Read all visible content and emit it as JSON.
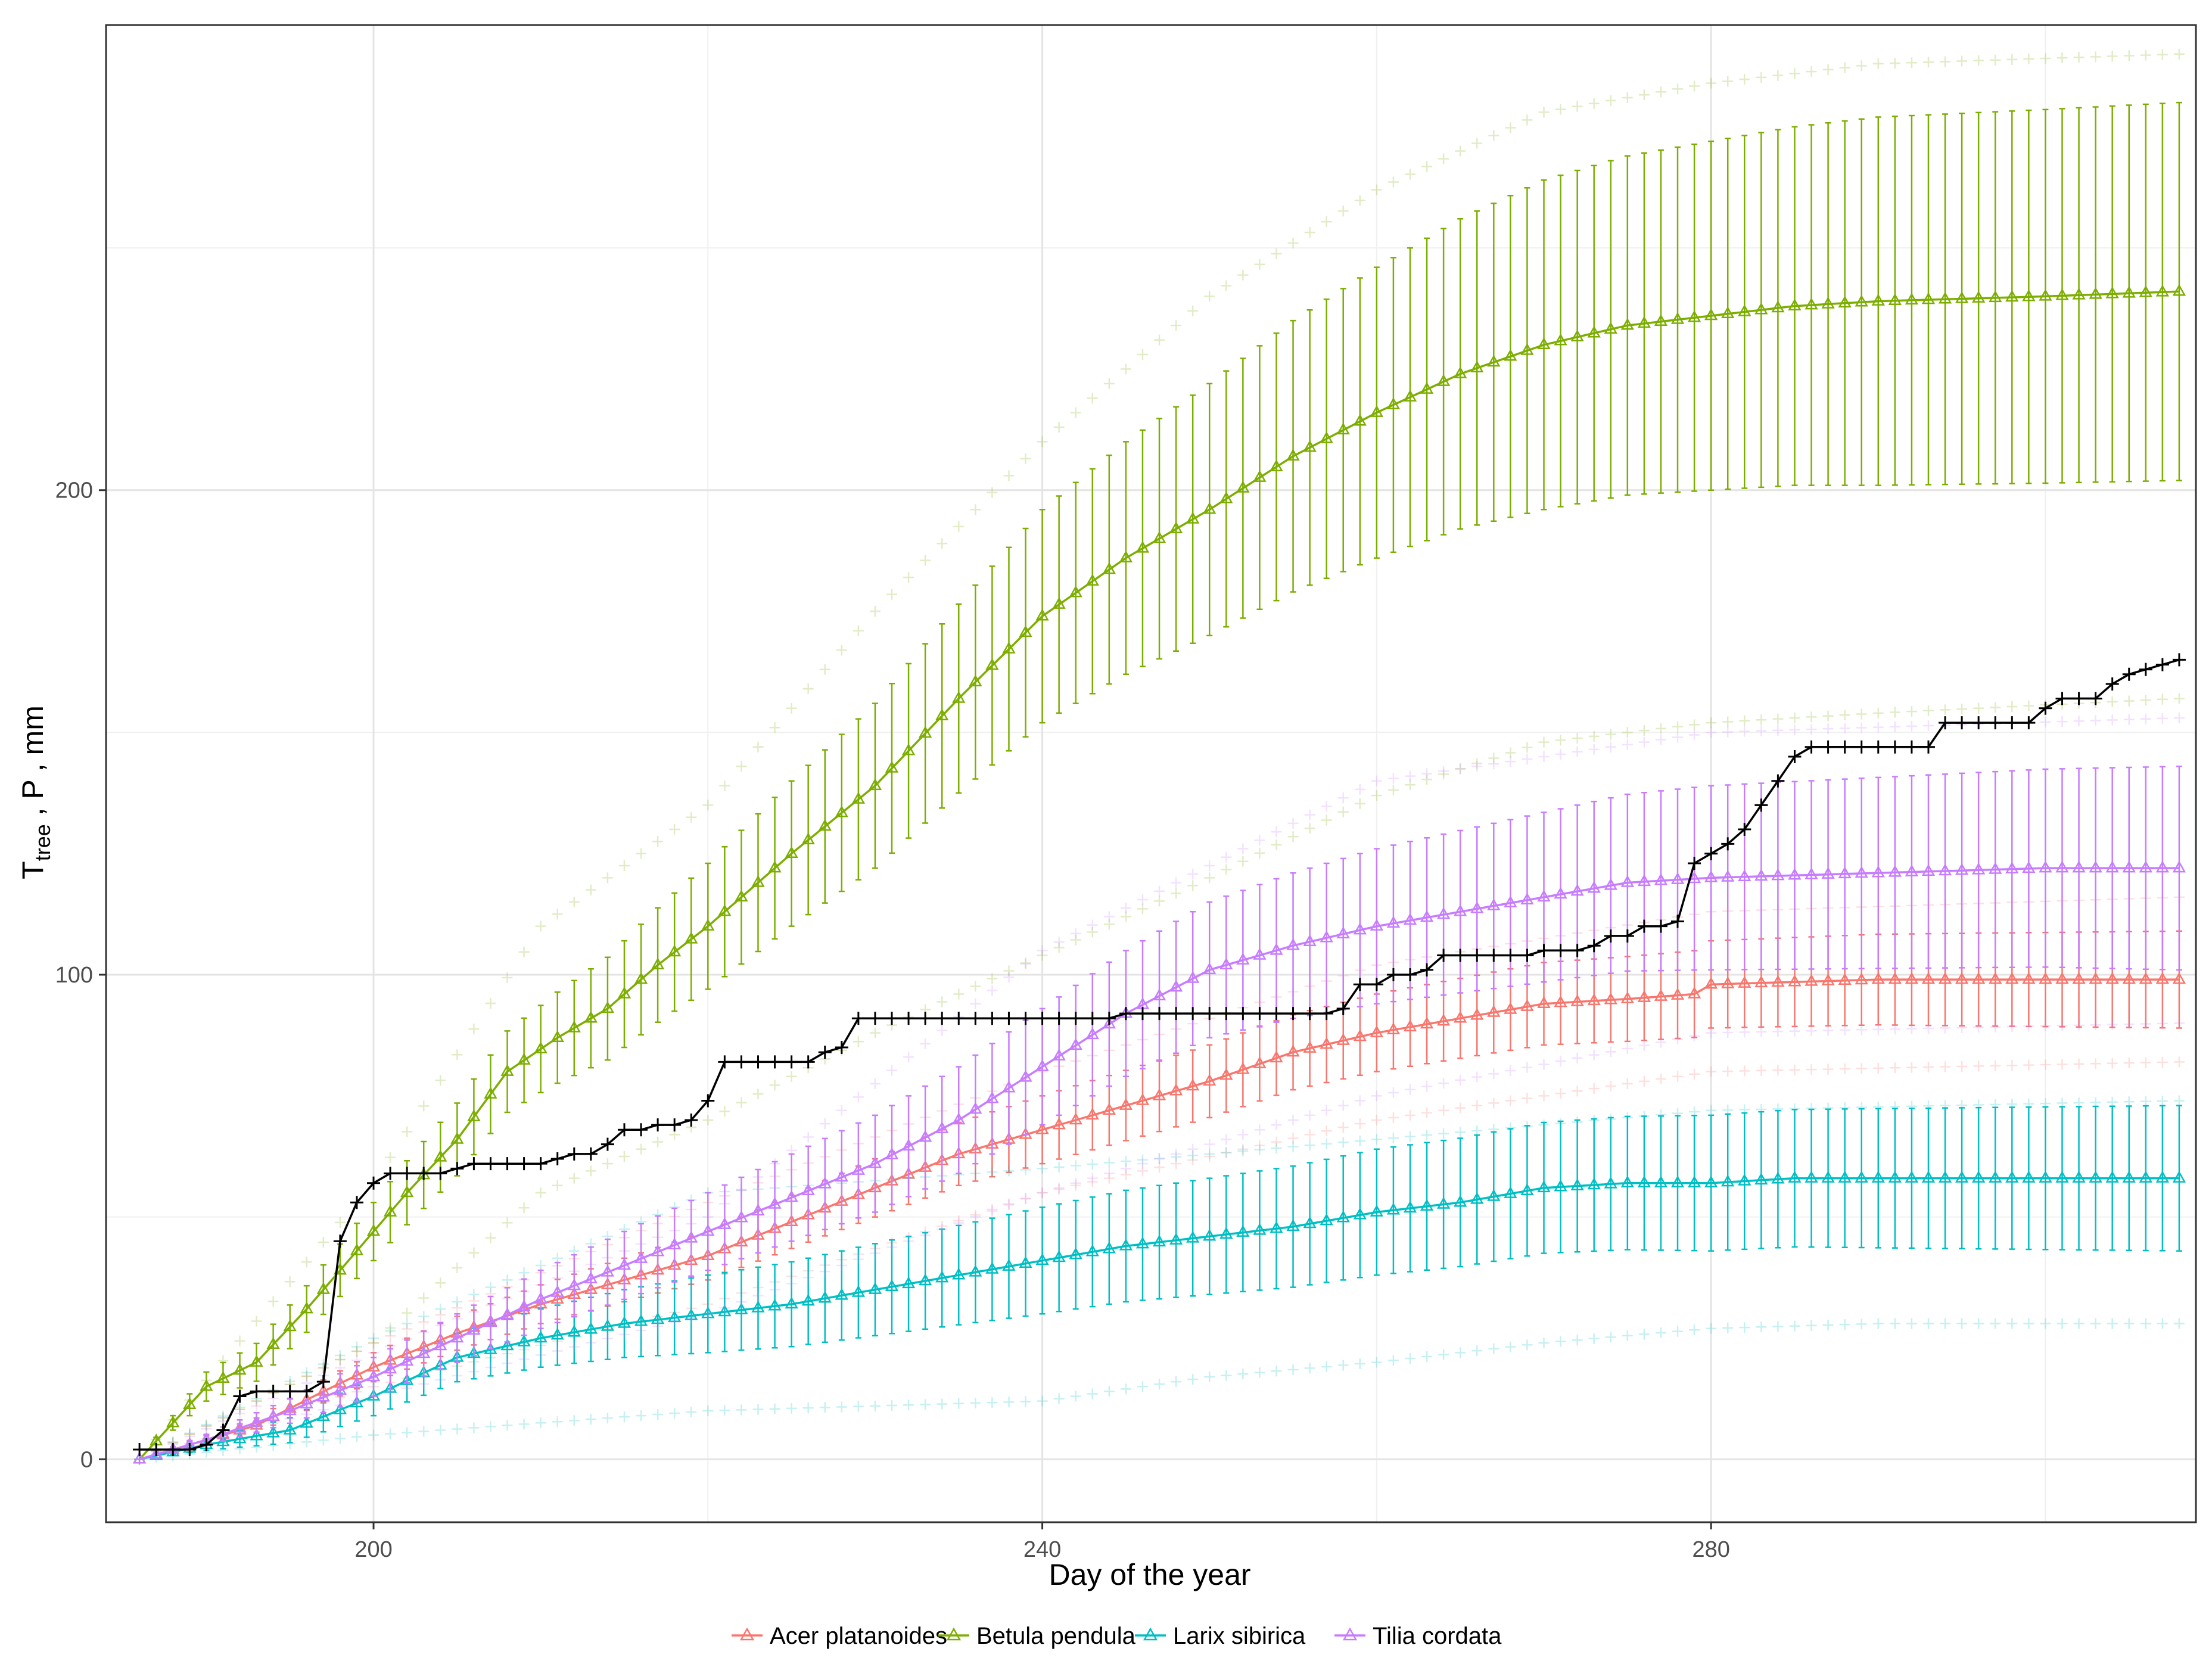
{
  "chart_data": {
    "type": "line",
    "title": "",
    "xlabel": "Day of the year",
    "ylabel_main": "T",
    "ylabel_sub": "tree",
    "ylabel_rest": " , P , mm",
    "xlim": [
      184,
      309
    ],
    "ylim": [
      -13,
      296
    ],
    "x_ticks": [
      200,
      240,
      280
    ],
    "x_tick_labels": [
      "200",
      "240",
      "280"
    ],
    "y_ticks": [
      0,
      100,
      200
    ],
    "y_tick_labels": [
      "0",
      "100",
      "200"
    ],
    "x_minor": [
      220,
      260,
      300
    ],
    "y_minor": [
      50,
      150,
      250
    ],
    "x_start": 186,
    "x_end": 308,
    "precipitation_color": "#000000",
    "precipitation_steps": [
      [
        186,
        2
      ],
      [
        190,
        3
      ],
      [
        191,
        6
      ],
      [
        192,
        13
      ],
      [
        193,
        14
      ],
      [
        197,
        16
      ],
      [
        198,
        45
      ],
      [
        199,
        53
      ],
      [
        200,
        57
      ],
      [
        201,
        59
      ],
      [
        205,
        60
      ],
      [
        206,
        61
      ],
      [
        211,
        62
      ],
      [
        212,
        63
      ],
      [
        214,
        65
      ],
      [
        215,
        68
      ],
      [
        217,
        69
      ],
      [
        219,
        70
      ],
      [
        220,
        74
      ],
      [
        221,
        82
      ],
      [
        227,
        84
      ],
      [
        228,
        85
      ],
      [
        229,
        91
      ],
      [
        245,
        92
      ],
      [
        258,
        93
      ],
      [
        259,
        98
      ],
      [
        261,
        100
      ],
      [
        263,
        101
      ],
      [
        264,
        104
      ],
      [
        270,
        105
      ],
      [
        273,
        106
      ],
      [
        274,
        108
      ],
      [
        276,
        110
      ],
      [
        278,
        111
      ],
      [
        279,
        123
      ],
      [
        280,
        125
      ],
      [
        281,
        127
      ],
      [
        282,
        130
      ],
      [
        283,
        135
      ],
      [
        284,
        140
      ],
      [
        285,
        145
      ],
      [
        286,
        147
      ],
      [
        294,
        152
      ],
      [
        300,
        155
      ],
      [
        301,
        157
      ],
      [
        304,
        160
      ],
      [
        305,
        162
      ],
      [
        306,
        163
      ],
      [
        307,
        164
      ],
      [
        308,
        165
      ]
    ],
    "series": [
      {
        "name": "Acer platanoides",
        "color": "#F8766D",
        "mean": [
          [
            186,
            0
          ],
          [
            190,
            4
          ],
          [
            193,
            7
          ],
          [
            197,
            14
          ],
          [
            200,
            19
          ],
          [
            205,
            26
          ],
          [
            210,
            32
          ],
          [
            215,
            37
          ],
          [
            220,
            42
          ],
          [
            225,
            49
          ],
          [
            230,
            56
          ],
          [
            235,
            63
          ],
          [
            240,
            68
          ],
          [
            245,
            73
          ],
          [
            250,
            78
          ],
          [
            255,
            84
          ],
          [
            260,
            88
          ],
          [
            265,
            91
          ],
          [
            270,
            94
          ],
          [
            275,
            95
          ],
          [
            279,
            96
          ],
          [
            280,
            98
          ],
          [
            290,
            99
          ],
          [
            300,
            99
          ],
          [
            308,
            99
          ]
        ],
        "err": [
          [
            186,
            0
          ],
          [
            200,
            3
          ],
          [
            220,
            5
          ],
          [
            240,
            7
          ],
          [
            260,
            8
          ],
          [
            280,
            9
          ],
          [
            308,
            10
          ]
        ],
        "band_lo": [
          [
            186,
            0
          ],
          [
            200,
            15
          ],
          [
            220,
            32
          ],
          [
            240,
            55
          ],
          [
            260,
            70
          ],
          [
            280,
            80
          ],
          [
            308,
            82
          ]
        ],
        "band_hi": [
          [
            186,
            0
          ],
          [
            200,
            24
          ],
          [
            220,
            53
          ],
          [
            240,
            80
          ],
          [
            260,
            102
          ],
          [
            280,
            113
          ],
          [
            308,
            116
          ]
        ]
      },
      {
        "name": "Betula pendula",
        "color": "#7CAE00",
        "mean": [
          [
            186,
            0
          ],
          [
            190,
            15
          ],
          [
            193,
            20
          ],
          [
            196,
            31
          ],
          [
            199,
            43
          ],
          [
            202,
            55
          ],
          [
            205,
            66
          ],
          [
            208,
            80
          ],
          [
            211,
            87
          ],
          [
            214,
            93
          ],
          [
            217,
            102
          ],
          [
            220,
            110
          ],
          [
            225,
            125
          ],
          [
            230,
            139
          ],
          [
            235,
            157
          ],
          [
            240,
            174
          ],
          [
            245,
            186
          ],
          [
            250,
            196
          ],
          [
            255,
            207
          ],
          [
            260,
            216
          ],
          [
            265,
            224
          ],
          [
            270,
            230
          ],
          [
            275,
            234
          ],
          [
            280,
            236
          ],
          [
            285,
            238
          ],
          [
            290,
            239
          ],
          [
            300,
            240
          ],
          [
            308,
            241
          ]
        ],
        "err": [
          [
            186,
            0
          ],
          [
            190,
            3
          ],
          [
            200,
            6
          ],
          [
            210,
            9
          ],
          [
            220,
            13
          ],
          [
            230,
            17
          ],
          [
            240,
            22
          ],
          [
            250,
            26
          ],
          [
            260,
            30
          ],
          [
            270,
            34
          ],
          [
            280,
            36
          ],
          [
            290,
            38
          ],
          [
            308,
            39
          ]
        ],
        "band_lo": [
          [
            186,
            0
          ],
          [
            200,
            24
          ],
          [
            210,
            55
          ],
          [
            220,
            70
          ],
          [
            230,
            88
          ],
          [
            240,
            104
          ],
          [
            250,
            120
          ],
          [
            260,
            137
          ],
          [
            270,
            148
          ],
          [
            280,
            152
          ],
          [
            290,
            154
          ],
          [
            308,
            157
          ]
        ],
        "band_hi": [
          [
            186,
            0
          ],
          [
            200,
            57
          ],
          [
            210,
            110
          ],
          [
            220,
            135
          ],
          [
            230,
            175
          ],
          [
            240,
            210
          ],
          [
            250,
            240
          ],
          [
            260,
            262
          ],
          [
            270,
            278
          ],
          [
            280,
            284
          ],
          [
            290,
            288
          ],
          [
            308,
            290
          ]
        ]
      },
      {
        "name": "Larix sibirica",
        "color": "#00BFC4",
        "mean": [
          [
            186,
            0
          ],
          [
            190,
            3
          ],
          [
            195,
            6
          ],
          [
            200,
            13
          ],
          [
            205,
            21
          ],
          [
            210,
            25
          ],
          [
            215,
            28
          ],
          [
            220,
            30
          ],
          [
            225,
            32
          ],
          [
            230,
            35
          ],
          [
            235,
            38
          ],
          [
            240,
            41
          ],
          [
            245,
            44
          ],
          [
            250,
            46
          ],
          [
            255,
            48
          ],
          [
            260,
            51
          ],
          [
            265,
            53
          ],
          [
            270,
            56
          ],
          [
            275,
            57
          ],
          [
            280,
            57
          ],
          [
            285,
            58
          ],
          [
            290,
            58
          ],
          [
            300,
            58
          ],
          [
            308,
            58
          ]
        ],
        "err": [
          [
            186,
            0
          ],
          [
            200,
            4
          ],
          [
            220,
            8
          ],
          [
            240,
            11
          ],
          [
            260,
            13
          ],
          [
            280,
            14
          ],
          [
            308,
            15
          ]
        ],
        "band_lo": [
          [
            186,
            0
          ],
          [
            200,
            5
          ],
          [
            220,
            10
          ],
          [
            240,
            12
          ],
          [
            250,
            17
          ],
          [
            260,
            20
          ],
          [
            270,
            24
          ],
          [
            280,
            27
          ],
          [
            290,
            28
          ],
          [
            308,
            28
          ]
        ],
        "band_hi": [
          [
            186,
            0
          ],
          [
            200,
            25
          ],
          [
            220,
            55
          ],
          [
            240,
            60
          ],
          [
            260,
            66
          ],
          [
            280,
            72
          ],
          [
            308,
            74
          ]
        ]
      },
      {
        "name": "Tilia cordata",
        "color": "#C77CFF",
        "mean": [
          [
            186,
            0
          ],
          [
            190,
            4
          ],
          [
            195,
            10
          ],
          [
            200,
            17
          ],
          [
            205,
            25
          ],
          [
            210,
            33
          ],
          [
            215,
            40
          ],
          [
            220,
            47
          ],
          [
            225,
            54
          ],
          [
            230,
            61
          ],
          [
            235,
            70
          ],
          [
            240,
            81
          ],
          [
            245,
            92
          ],
          [
            250,
            101
          ],
          [
            255,
            106
          ],
          [
            260,
            110
          ],
          [
            265,
            113
          ],
          [
            270,
            116
          ],
          [
            275,
            119
          ],
          [
            280,
            120
          ],
          [
            290,
            121
          ],
          [
            300,
            122
          ],
          [
            308,
            122
          ]
        ],
        "err": [
          [
            186,
            0
          ],
          [
            200,
            4
          ],
          [
            220,
            8
          ],
          [
            240,
            12
          ],
          [
            260,
            16
          ],
          [
            280,
            19
          ],
          [
            308,
            21
          ]
        ],
        "band_lo": [
          [
            186,
            0
          ],
          [
            200,
            13
          ],
          [
            220,
            30
          ],
          [
            240,
            55
          ],
          [
            260,
            75
          ],
          [
            280,
            88
          ],
          [
            308,
            90
          ]
        ],
        "band_hi": [
          [
            186,
            0
          ],
          [
            200,
            22
          ],
          [
            220,
            50
          ],
          [
            240,
            105
          ],
          [
            260,
            140
          ],
          [
            280,
            150
          ],
          [
            308,
            153
          ]
        ]
      }
    ],
    "legend": {
      "position": "bottom",
      "entries": [
        "Acer platanoides",
        "Betula pendula",
        "Larix sibirica",
        "Tilia cordata"
      ]
    }
  }
}
